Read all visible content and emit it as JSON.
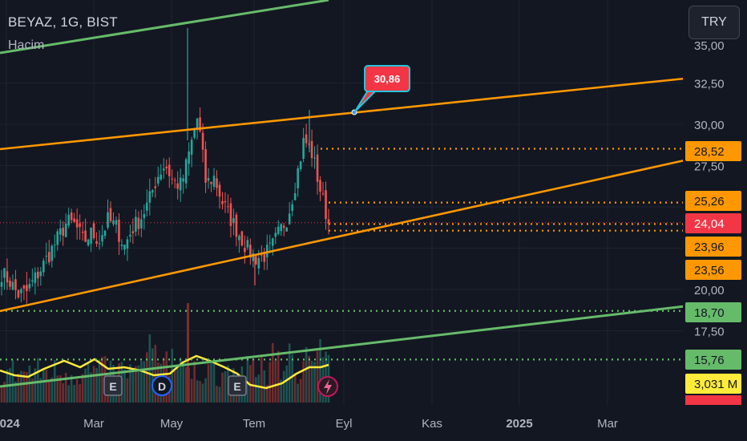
{
  "header": {
    "symbol_line": "BEYAZ, 1G, BIST",
    "indicator": "Hacim",
    "currency_button": "TRY"
  },
  "colors": {
    "background": "#131722",
    "up": "#26a69a",
    "down": "#ef5350",
    "channel_orange": "#ff9800",
    "trend_green": "#66bb6a",
    "volume_ma": "#ffeb3b",
    "callout": "#f23645"
  },
  "callout": {
    "label": "30,86"
  },
  "events": [
    "E",
    "D",
    "E"
  ],
  "event_icons": [
    "flash-icon"
  ],
  "chart_data": {
    "type": "candlestick",
    "title": "BEYAZ, 1G, BIST",
    "y_axis": {
      "range": [
        14.5,
        35.5
      ],
      "ticks": [
        "32,50",
        "30,00",
        "27,50",
        "20,00",
        "17,50"
      ]
    },
    "x_axis": {
      "ticks": [
        "2024",
        "Mar",
        "May",
        "Tem",
        "Eyl",
        "Kas",
        "2025",
        "Mar"
      ]
    },
    "price_labels": [
      {
        "text": "28,52",
        "value": 28.52,
        "color": "#ff9800"
      },
      {
        "text": "25,26",
        "value": 25.26,
        "color": "#ff9800"
      },
      {
        "text": "24,04",
        "value": 24.04,
        "color": "#f23645"
      },
      {
        "text": "23,96",
        "value": 23.96,
        "color": "#ff9800"
      },
      {
        "text": "23,56",
        "value": 23.56,
        "color": "#ff9800"
      },
      {
        "text": "18,70",
        "value": 18.7,
        "color": "#66bb6a"
      },
      {
        "text": "15,76",
        "value": 15.76,
        "color": "#66bb6a"
      },
      {
        "text": "3,031 M",
        "value": 3.031,
        "color": "#ffeb3b"
      }
    ],
    "approx_close_path": [
      21.0,
      20.5,
      19.7,
      19.8,
      20.6,
      21.4,
      22.3,
      23.2,
      24.1,
      23.9,
      22.9,
      23.4,
      23.0,
      24.2,
      23.8,
      22.6,
      23.7,
      24.3,
      25.3,
      26.8,
      27.6,
      26.5,
      26.3,
      28.4,
      30.5,
      26.4,
      26.8,
      25.3,
      24.3,
      23.4,
      22.5,
      21.9,
      22.0,
      22.5,
      23.5,
      24.4,
      26.6,
      29.1,
      28.2,
      26.0,
      24.0
    ],
    "volume_note": "volume histogram and moving average in lower pane"
  }
}
